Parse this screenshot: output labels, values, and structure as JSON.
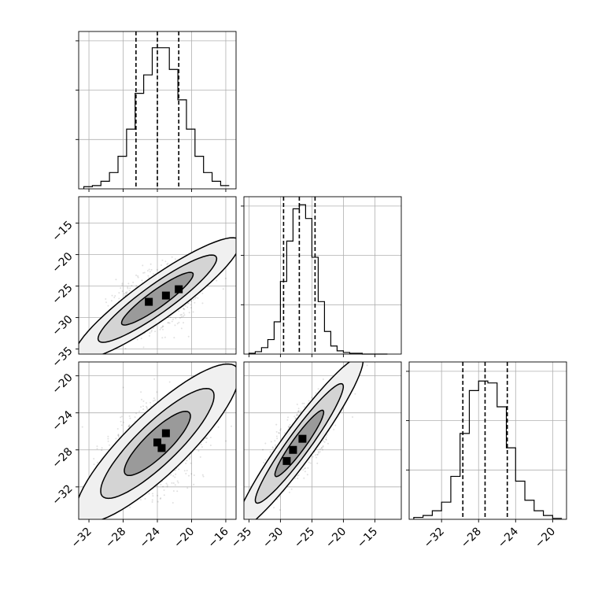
{
  "chart_data": {
    "type": "corner",
    "grid": true,
    "parameters": [
      {
        "range": [
          -33.2,
          -14.8
        ],
        "ticks": [
          -32,
          -28,
          -24,
          -20,
          -16
        ],
        "hist_edges": [
          -32.6,
          -31.6,
          -30.6,
          -29.6,
          -28.6,
          -27.6,
          -26.6,
          -25.6,
          -24.6,
          -23.6,
          -22.6,
          -21.6,
          -20.6,
          -19.6,
          -18.6,
          -17.6,
          -16.6,
          -15.6
        ],
        "hist_counts": [
          2,
          3,
          7,
          15,
          30,
          55,
          88,
          105,
          130,
          130,
          110,
          82,
          55,
          30,
          15,
          7,
          3
        ],
        "quantiles": [
          -26.5,
          -24.0,
          -21.5
        ],
        "hist_max": 145
      },
      {
        "range": [
          -35.8,
          -10.8
        ],
        "ticks": [
          -35,
          -30,
          -25,
          -20,
          -15
        ],
        "hist_edges": [
          -35,
          -34,
          -33,
          -32,
          -31,
          -30,
          -29,
          -28,
          -27,
          -26,
          -25,
          -24,
          -23,
          -22,
          -21,
          -20,
          -19,
          -18,
          -17,
          -16,
          -15,
          -14,
          -13
        ],
        "hist_counts": [
          1,
          3,
          8,
          18,
          40,
          90,
          140,
          180,
          185,
          168,
          120,
          65,
          28,
          10,
          4,
          2,
          1,
          1,
          0,
          0,
          0,
          0
        ],
        "quantiles": [
          -29.5,
          -27.0,
          -24.5
        ],
        "hist_max": 195
      },
      {
        "range": [
          -35.5,
          -18.5
        ],
        "ticks": [
          -32,
          -28,
          -24,
          -20
        ],
        "hist_edges": [
          -35,
          -34,
          -33,
          -32,
          -31,
          -30,
          -29,
          -28,
          -27,
          -26,
          -25,
          -24,
          -23,
          -22,
          -21,
          -20,
          -19
        ],
        "hist_counts": [
          2,
          4,
          9,
          18,
          45,
          90,
          135,
          145,
          143,
          118,
          75,
          40,
          20,
          9,
          4,
          1
        ],
        "quantiles": [
          -29.7,
          -27.3,
          -24.9
        ],
        "hist_max": 165
      }
    ],
    "pairs": [
      {
        "x_param": 0,
        "y_param": 1,
        "yticks": [
          -35,
          -30,
          -25,
          -20,
          -15
        ],
        "center": [
          -24,
          -27
        ],
        "slope": 1.0,
        "major_sd": 6.4,
        "minor_sd": 1.7,
        "contours": [
          {
            "major": 5.8,
            "minor": 1.2,
            "fill": "#9a9a9a"
          },
          {
            "major": 9.6,
            "minor": 2.0,
            "fill": "#d4d4d4"
          },
          {
            "major": 13.4,
            "minor": 2.9,
            "fill": "#f0f0f0"
          }
        ],
        "peak": [
          [
            -25,
            -27.5
          ],
          [
            -23,
            -26.5
          ],
          [
            -21.5,
            -25.5
          ]
        ]
      },
      {
        "x_param": 0,
        "y_param": 2,
        "yticks": [
          -32,
          -28,
          -24,
          -20
        ],
        "center": [
          -24,
          -27.3
        ],
        "slope": 0.88,
        "major_sd": 6.0,
        "minor_sd": 2.0,
        "contours": [
          {
            "major": 5.0,
            "minor": 1.4,
            "fill": "#9a9a9a"
          },
          {
            "major": 8.6,
            "minor": 2.3,
            "fill": "#d4d4d4"
          },
          {
            "major": 12.4,
            "minor": 3.4,
            "fill": "#f0f0f0"
          }
        ],
        "peak": [
          [
            -24,
            -27.2
          ],
          [
            -23,
            -26.2
          ],
          [
            -23.5,
            -27.8
          ]
        ]
      },
      {
        "x_param": 1,
        "y_param": 2,
        "yticks": [
          -32,
          -28,
          -24,
          -20
        ],
        "center": [
          -27,
          -27.3
        ],
        "slope": 0.92,
        "major_sd": 7.0,
        "minor_sd": 1.2,
        "contours": [
          {
            "major": 5.2,
            "minor": 0.9,
            "fill": "#9a9a9a"
          },
          {
            "major": 9.4,
            "minor": 1.5,
            "fill": "#d4d4d4"
          },
          {
            "major": 13.6,
            "minor": 2.2,
            "fill": "#f0f0f0"
          }
        ],
        "peak": [
          [
            -28,
            -28
          ],
          [
            -26.5,
            -26.8
          ],
          [
            -29,
            -29.2
          ]
        ]
      }
    ]
  }
}
